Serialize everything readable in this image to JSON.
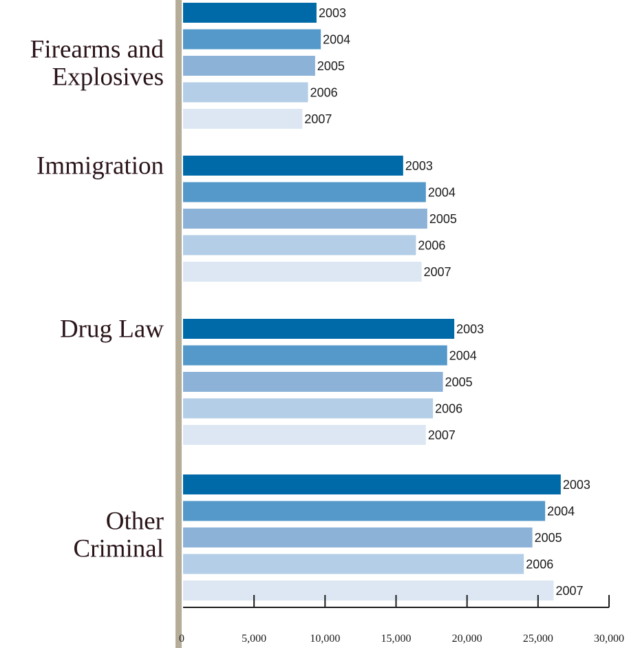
{
  "chart_data": {
    "type": "bar",
    "orientation": "horizontal",
    "title": "",
    "xlabel": "",
    "ylabel": "",
    "xlim": [
      0,
      30000
    ],
    "x_ticks": [
      "0",
      "5,000",
      "10,000",
      "15,000",
      "20,000",
      "25,000",
      "30,000"
    ],
    "grid": false,
    "groups": [
      {
        "label_lines": [
          "Firearms and",
          "Explosives"
        ],
        "bars": [
          {
            "year": "2003",
            "value": 9400
          },
          {
            "year": "2004",
            "value": 9700
          },
          {
            "year": "2005",
            "value": 9300
          },
          {
            "year": "2006",
            "value": 8800
          },
          {
            "year": "2007",
            "value": 8400
          }
        ]
      },
      {
        "label_lines": [
          "Immigration"
        ],
        "bars": [
          {
            "year": "2003",
            "value": 15500
          },
          {
            "year": "2004",
            "value": 17100
          },
          {
            "year": "2005",
            "value": 17200
          },
          {
            "year": "2006",
            "value": 16400
          },
          {
            "year": "2007",
            "value": 16800
          }
        ]
      },
      {
        "label_lines": [
          "Drug Law"
        ],
        "bars": [
          {
            "year": "2003",
            "value": 19100
          },
          {
            "year": "2004",
            "value": 18600
          },
          {
            "year": "2005",
            "value": 18300
          },
          {
            "year": "2006",
            "value": 17600
          },
          {
            "year": "2007",
            "value": 17100
          }
        ]
      },
      {
        "label_lines": [
          "Other",
          "Criminal"
        ],
        "bars": [
          {
            "year": "2003",
            "value": 26600
          },
          {
            "year": "2004",
            "value": 25500
          },
          {
            "year": "2005",
            "value": 24600
          },
          {
            "year": "2006",
            "value": 24000
          },
          {
            "year": "2007",
            "value": 26100
          }
        ]
      }
    ],
    "series_colors": {
      "2003": "#006aa8",
      "2004": "#5499c9",
      "2005": "#8cb2d8",
      "2006": "#b3cee6",
      "2007": "#dce7f3"
    },
    "axis_bar_color": "#b5ad98",
    "label_color": "#2a1418"
  }
}
